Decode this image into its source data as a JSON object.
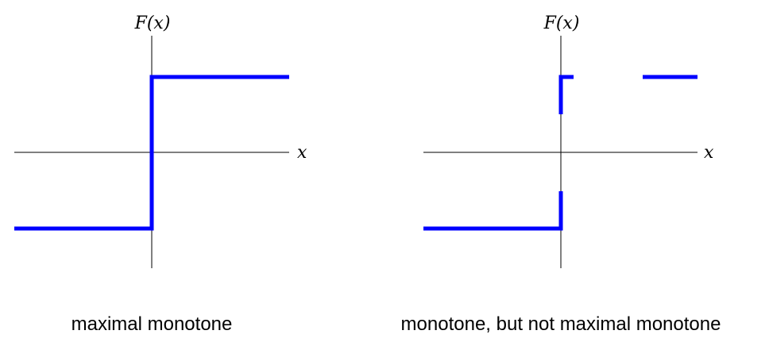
{
  "colors": {
    "graph": "#0000ff",
    "axis": "#000000",
    "background": "#ffffff"
  },
  "panels": [
    {
      "id": "left",
      "y_axis_label": "F(x)",
      "x_axis_label": "x",
      "caption": "maximal monotone"
    },
    {
      "id": "right",
      "y_axis_label": "F(x)",
      "x_axis_label": "x",
      "caption": "monotone, but not maximal monotone"
    }
  ]
}
